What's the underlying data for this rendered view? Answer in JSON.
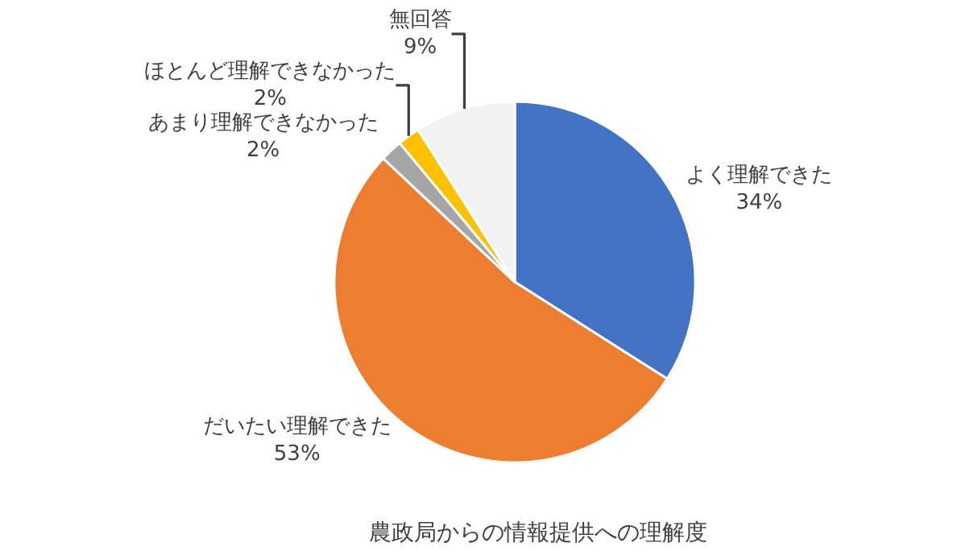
{
  "chart_data": {
    "type": "pie",
    "title": "農政局からの情報提供への理解度",
    "categories": [
      "よく理解できた",
      "だいたい理解できた",
      "あまり理解できなかった",
      "ほとんど理解できなかった",
      "無回答"
    ],
    "values": [
      34,
      53,
      2,
      2,
      9
    ],
    "value_labels": [
      "34%",
      "53%",
      "2%",
      "2%",
      "9%"
    ],
    "colors": [
      "#4472c4",
      "#ed7d31",
      "#a5a5a5",
      "#ffc000",
      "#f2f2f2"
    ],
    "legend": false
  }
}
